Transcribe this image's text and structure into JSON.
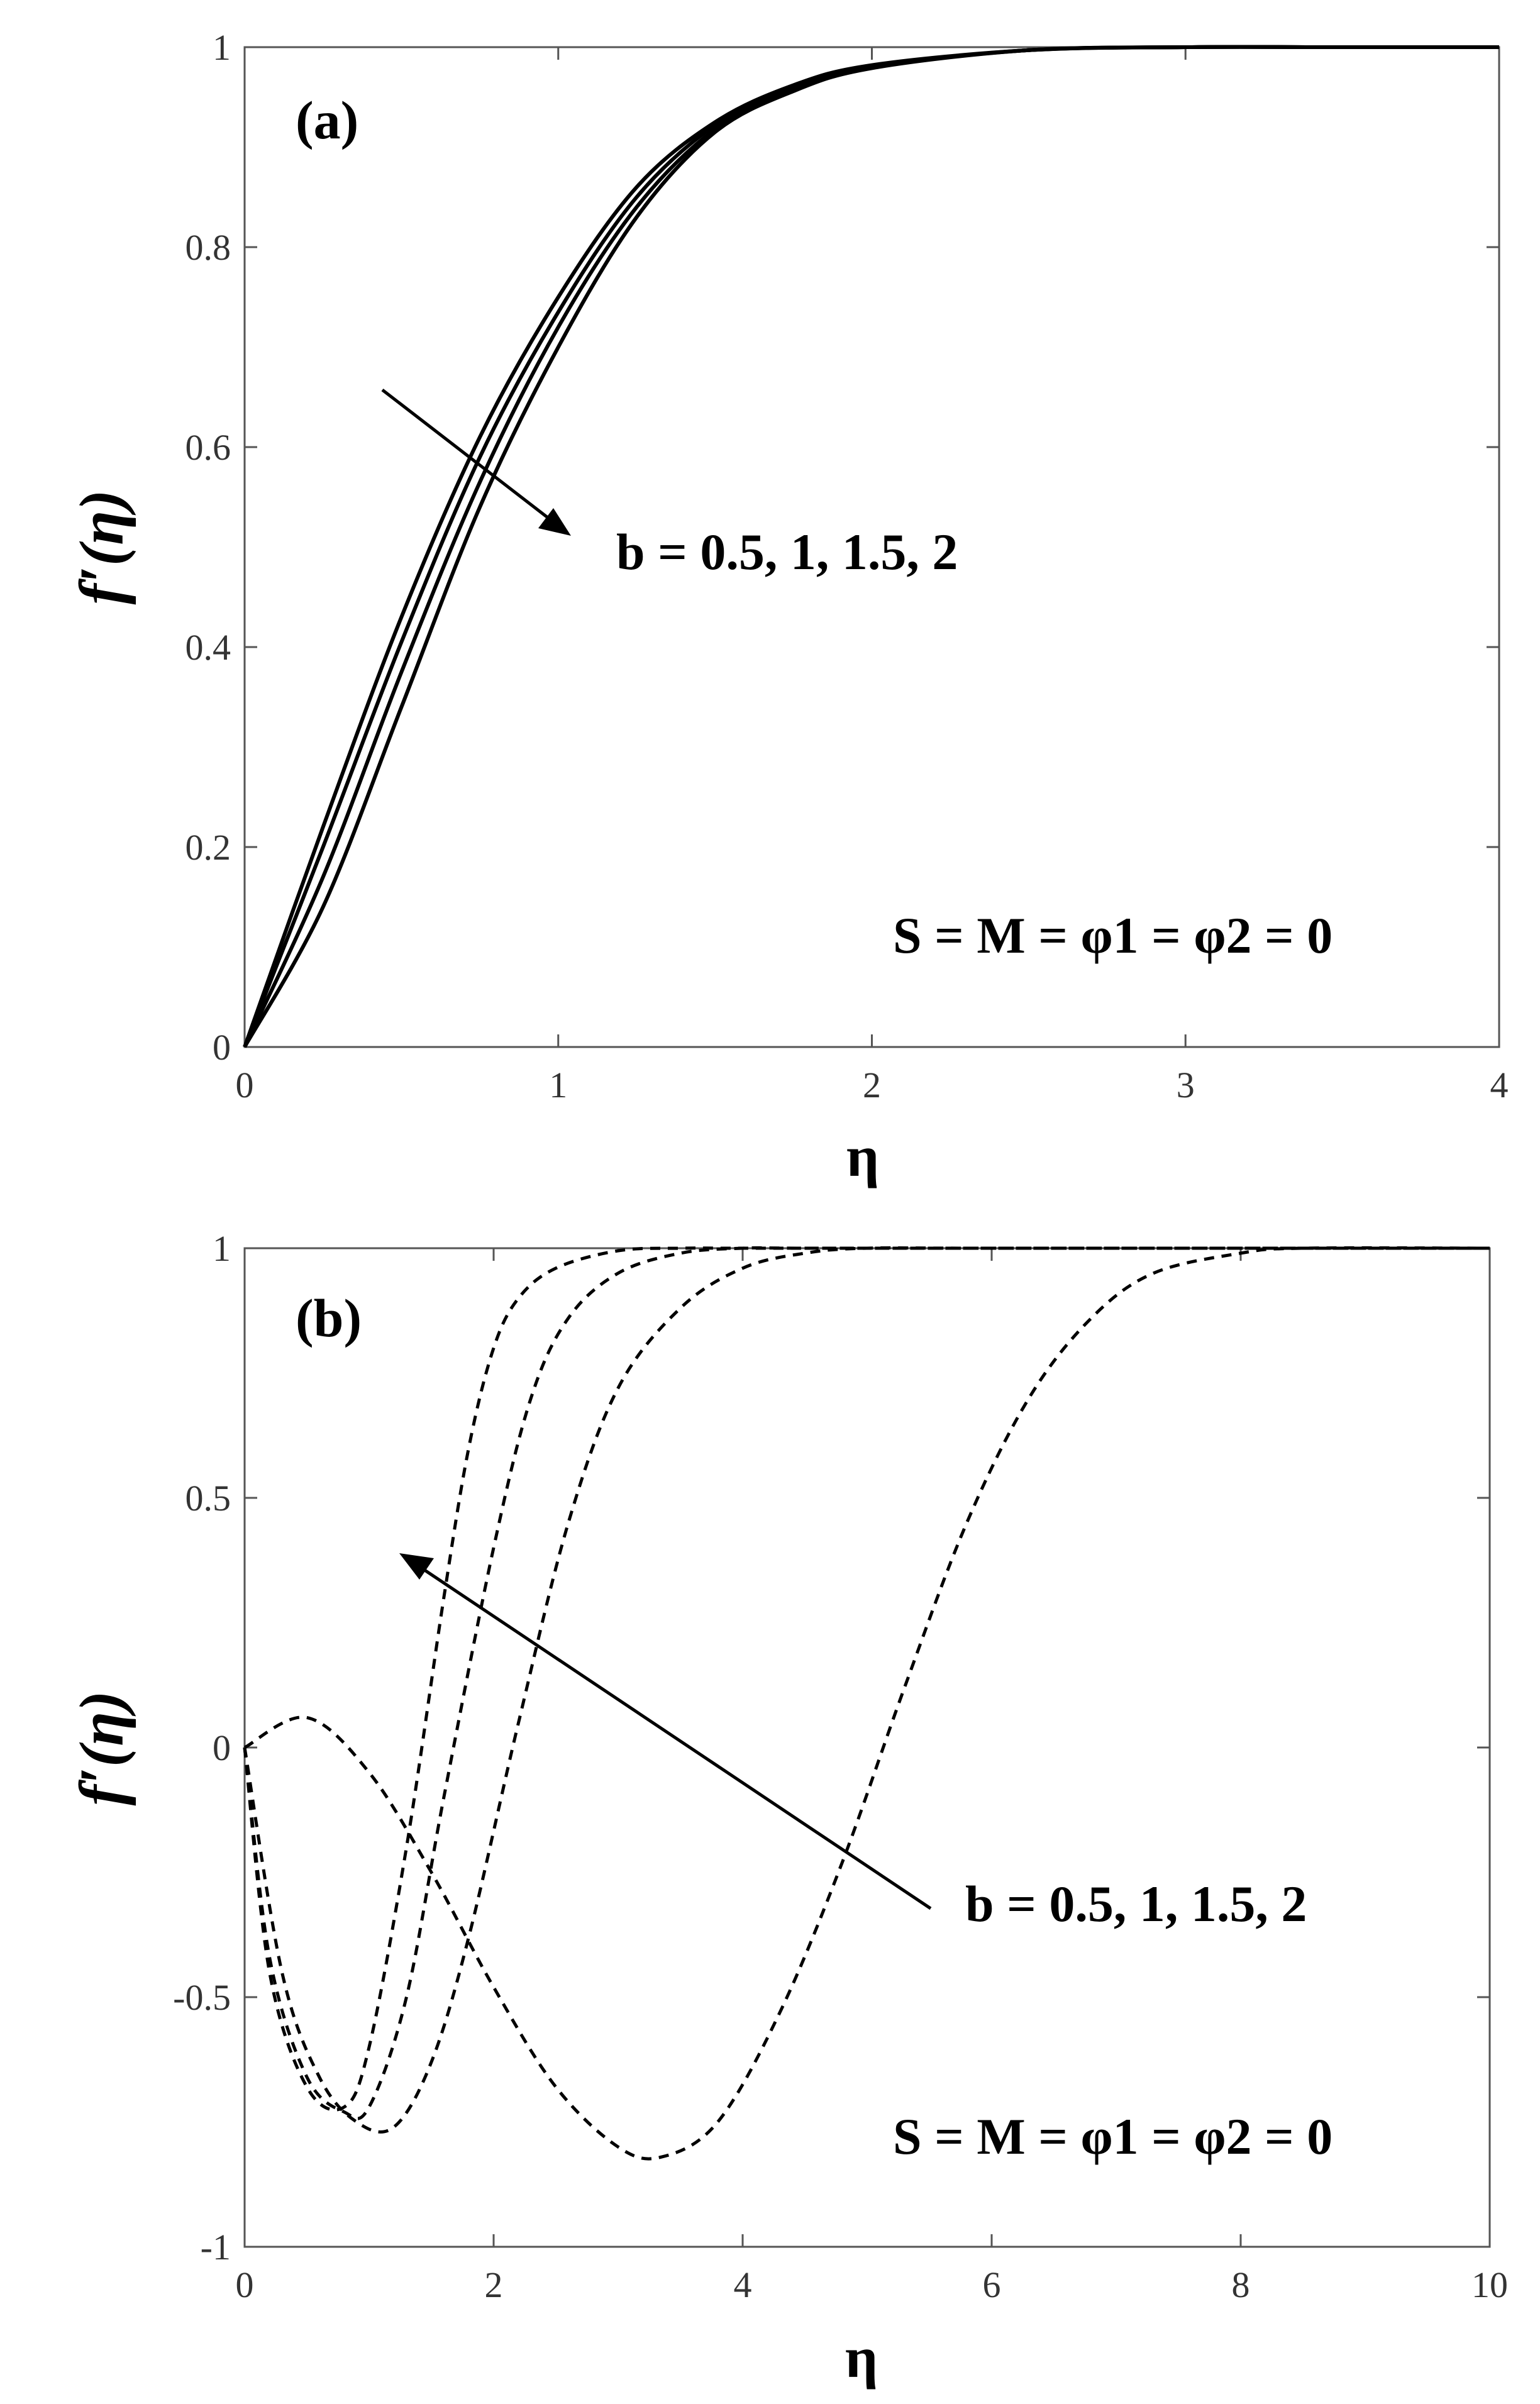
{
  "chart_data": [
    {
      "type": "line",
      "panel_label": "(a)",
      "xlabel": "η",
      "ylabel": "f′(η)",
      "xlim": [
        0,
        4
      ],
      "ylim": [
        0,
        1
      ],
      "xticks": [
        "0",
        "1",
        "2",
        "3",
        "4"
      ],
      "yticks": [
        "0",
        "0.2",
        "0.4",
        "0.6",
        "0.8",
        "1"
      ],
      "line_style": "solid",
      "grid": false,
      "annotation": "b = 0.5, 1, 1.5, 2",
      "condition": "S = M = φ1 = φ2 = 0",
      "series": [
        {
          "x": [
            0,
            0.25,
            0.5,
            0.75,
            1.0,
            1.25,
            1.5,
            1.75,
            2.0,
            2.5,
            3.0,
            3.5,
            4.0
          ],
          "y": [
            0,
            0.22,
            0.43,
            0.61,
            0.75,
            0.86,
            0.925,
            0.962,
            0.982,
            0.997,
            1.0,
            1.0,
            1.0
          ]
        },
        {
          "x": [
            0,
            0.25,
            0.5,
            0.75,
            1.0,
            1.25,
            1.5,
            1.75,
            2.0,
            2.5,
            3.0,
            3.5,
            4.0
          ],
          "y": [
            0,
            0.2,
            0.405,
            0.59,
            0.735,
            0.85,
            0.922,
            0.96,
            0.981,
            0.997,
            1.0,
            1.0,
            1.0
          ]
        },
        {
          "x": [
            0,
            0.25,
            0.5,
            0.75,
            1.0,
            1.25,
            1.5,
            1.75,
            2.0,
            2.5,
            3.0,
            3.5,
            4.0
          ],
          "y": [
            0,
            0.17,
            0.375,
            0.565,
            0.72,
            0.84,
            0.918,
            0.958,
            0.98,
            0.997,
            1.0,
            1.0,
            1.0
          ]
        },
        {
          "x": [
            0,
            0.25,
            0.5,
            0.75,
            1.0,
            1.25,
            1.5,
            1.75,
            2.0,
            2.5,
            3.0,
            3.5,
            4.0
          ],
          "y": [
            0,
            0.14,
            0.34,
            0.54,
            0.7,
            0.83,
            0.915,
            0.956,
            0.979,
            0.997,
            1.0,
            1.0,
            1.0
          ]
        }
      ]
    },
    {
      "type": "line",
      "panel_label": "(b)",
      "xlabel": "η",
      "ylabel": "f′(η)",
      "xlim": [
        0,
        10
      ],
      "ylim": [
        -1,
        1
      ],
      "xticks": [
        "0",
        "2",
        "4",
        "6",
        "8",
        "10"
      ],
      "yticks": [
        "-1",
        "-0.5",
        "0",
        "0.5",
        "1"
      ],
      "line_style": "dashed",
      "grid": false,
      "annotation": "b = 0.5, 1, 1.5, 2",
      "condition": "S = M = φ1 = φ2 = 0",
      "series": [
        {
          "x": [
            0,
            0.2,
            0.5,
            0.8,
            1.0,
            1.3,
            1.6,
            1.8,
            2.0,
            2.2,
            2.5,
            3.0,
            3.5,
            4.0,
            6.0,
            10.0
          ],
          "y": [
            0,
            -0.45,
            -0.68,
            -0.72,
            -0.6,
            -0.2,
            0.3,
            0.6,
            0.8,
            0.9,
            0.96,
            0.995,
            1.0,
            1.0,
            1.0,
            1.0
          ]
        },
        {
          "x": [
            0,
            0.2,
            0.5,
            0.8,
            1.0,
            1.3,
            1.6,
            2.0,
            2.3,
            2.6,
            3.0,
            3.5,
            4.0,
            4.5,
            6.0,
            10.0
          ],
          "y": [
            0,
            -0.42,
            -0.66,
            -0.73,
            -0.72,
            -0.5,
            -0.1,
            0.4,
            0.7,
            0.86,
            0.95,
            0.99,
            1.0,
            1.0,
            1.0,
            1.0
          ]
        },
        {
          "x": [
            0,
            0.3,
            0.6,
            0.9,
            1.2,
            1.5,
            1.8,
            2.2,
            2.6,
            3.0,
            3.5,
            4.0,
            4.5,
            5.0,
            6.0,
            10.0
          ],
          "y": [
            0,
            -0.45,
            -0.66,
            -0.75,
            -0.76,
            -0.63,
            -0.38,
            0.05,
            0.45,
            0.72,
            0.88,
            0.96,
            0.99,
            1.0,
            1.0,
            1.0
          ]
        },
        {
          "x": [
            0,
            0.5,
            1.0,
            1.5,
            2.0,
            2.5,
            3.0,
            3.35,
            3.8,
            4.3,
            4.8,
            5.3,
            5.8,
            6.3,
            6.8,
            7.3,
            8.0,
            8.5,
            10.0
          ],
          "y": [
            0,
            0.06,
            -0.05,
            -0.25,
            -0.48,
            -0.68,
            -0.8,
            -0.82,
            -0.75,
            -0.53,
            -0.23,
            0.12,
            0.45,
            0.7,
            0.86,
            0.95,
            0.99,
            1.0,
            1.0
          ]
        }
      ]
    }
  ]
}
